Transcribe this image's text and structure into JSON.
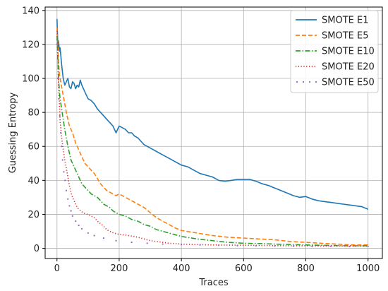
{
  "chart_data": {
    "type": "line",
    "title": "",
    "xlabel": "Traces",
    "ylabel": "Guessing Entropy",
    "xlim": [
      -38,
      1046
    ],
    "ylim": [
      -6,
      142
    ],
    "xticks": [
      0,
      200,
      400,
      600,
      800,
      1000
    ],
    "yticks": [
      0,
      20,
      40,
      60,
      80,
      100,
      120,
      140
    ],
    "grid": true,
    "legend_position": "top-right",
    "series": [
      {
        "name": "SMOTE E1",
        "color": "#1f77b4",
        "style": "solid",
        "x": [
          0,
          3,
          5,
          8,
          10,
          15,
          20,
          25,
          30,
          35,
          40,
          45,
          50,
          55,
          60,
          65,
          70,
          75,
          80,
          85,
          90,
          95,
          100,
          110,
          120,
          130,
          140,
          150,
          160,
          170,
          180,
          190,
          200,
          210,
          220,
          230,
          240,
          250,
          260,
          270,
          280,
          290,
          300,
          320,
          340,
          360,
          380,
          400,
          420,
          440,
          460,
          480,
          500,
          520,
          540,
          560,
          580,
          600,
          620,
          640,
          660,
          680,
          700,
          720,
          740,
          760,
          780,
          800,
          820,
          840,
          860,
          880,
          900,
          920,
          940,
          960,
          980,
          1000
        ],
        "y": [
          135,
          118,
          122,
          116,
          118,
          108,
          100,
          96,
          98,
          100,
          95,
          94,
          98,
          97,
          94,
          96,
          95,
          99,
          96,
          94,
          92,
          90,
          88,
          87,
          85,
          82,
          80,
          78,
          76,
          74,
          72,
          68,
          72,
          71,
          70,
          68,
          68,
          66,
          65,
          63,
          61,
          60,
          59,
          57,
          55,
          53,
          51,
          49,
          48,
          46,
          44,
          43,
          42,
          40,
          39.5,
          40,
          40.5,
          40.5,
          40.5,
          39.5,
          38,
          37,
          35.5,
          34,
          32.5,
          31,
          30,
          30.5,
          29,
          28,
          27.5,
          27,
          26.5,
          26,
          25.5,
          25,
          24.5,
          23
        ]
      },
      {
        "name": "SMOTE E5",
        "color": "#ff7f0e",
        "style": "dashed",
        "x": [
          0,
          3,
          5,
          8,
          10,
          15,
          20,
          25,
          30,
          35,
          40,
          45,
          50,
          55,
          60,
          65,
          70,
          75,
          80,
          90,
          100,
          110,
          120,
          130,
          140,
          150,
          160,
          170,
          180,
          190,
          200,
          220,
          240,
          260,
          280,
          300,
          320,
          340,
          360,
          380,
          400,
          450,
          500,
          550,
          600,
          650,
          700,
          750,
          800,
          850,
          900,
          950,
          1000
        ],
        "y": [
          130,
          118,
          110,
          102,
          100,
          95,
          90,
          85,
          80,
          76,
          72,
          70,
          68,
          65,
          62,
          60,
          58,
          56,
          54,
          50,
          48,
          46,
          44,
          41,
          38,
          36,
          34,
          33,
          32,
          31,
          32,
          30,
          28,
          26,
          24,
          21,
          18,
          16,
          14,
          12,
          10.5,
          9,
          7.5,
          6.5,
          6,
          5.5,
          5,
          4,
          3.5,
          3,
          2.5,
          2,
          2
        ]
      },
      {
        "name": "SMOTE E10",
        "color": "#2ca02c",
        "style": "dashdot",
        "x": [
          0,
          3,
          5,
          8,
          10,
          15,
          20,
          25,
          30,
          35,
          40,
          45,
          50,
          55,
          60,
          65,
          70,
          75,
          80,
          90,
          100,
          110,
          120,
          130,
          140,
          150,
          160,
          170,
          180,
          190,
          200,
          220,
          240,
          260,
          280,
          300,
          320,
          340,
          360,
          380,
          400,
          450,
          500,
          550,
          600,
          650,
          700,
          750,
          800,
          850,
          900,
          950,
          1000
        ],
        "y": [
          125,
          110,
          100,
          92,
          88,
          82,
          76,
          70,
          65,
          60,
          56,
          52,
          50,
          48,
          46,
          44,
          42,
          40,
          38,
          36,
          34,
          32,
          31,
          30,
          28,
          26,
          25,
          24,
          22,
          21,
          20,
          19,
          17,
          16,
          14,
          13,
          11,
          10,
          9,
          8,
          7,
          5.5,
          4.5,
          3.5,
          3,
          2.8,
          2.5,
          2.2,
          2,
          1.8,
          1.6,
          1.5,
          1.5
        ]
      },
      {
        "name": "SMOTE E20",
        "color": "#d62728",
        "style": "dotted",
        "x": [
          0,
          3,
          5,
          8,
          10,
          15,
          20,
          25,
          30,
          35,
          40,
          45,
          50,
          55,
          60,
          65,
          70,
          80,
          90,
          100,
          110,
          120,
          130,
          140,
          150,
          160,
          170,
          180,
          190,
          200,
          220,
          240,
          260,
          280,
          300,
          320,
          340,
          360,
          380,
          400,
          450,
          500,
          550,
          600,
          650,
          700,
          750,
          800,
          850,
          900,
          950,
          1000
        ],
        "y": [
          128,
          110,
          95,
          85,
          75,
          65,
          58,
          52,
          47,
          42,
          37,
          33,
          30,
          28,
          26,
          24,
          23,
          21.5,
          20.5,
          20,
          19,
          18,
          16,
          14.5,
          13,
          11,
          10,
          9.2,
          8.6,
          8.2,
          7.8,
          7.2,
          6.5,
          5.5,
          4.5,
          4,
          3.5,
          3,
          2.8,
          2.5,
          2.2,
          2,
          1.9,
          1.8,
          1.7,
          1.6,
          1.5,
          1.5,
          1.4,
          1.4,
          1.3,
          1.3
        ]
      },
      {
        "name": "SMOTE E50",
        "color": "#9467bd",
        "style": "sparse-dots",
        "x": [
          0,
          3,
          6,
          9,
          12,
          15,
          18,
          22,
          26,
          30,
          35,
          40,
          45,
          50,
          60,
          70,
          80,
          100,
          120,
          150,
          190,
          240,
          290,
          340,
          400,
          460,
          520,
          580,
          640,
          700,
          760,
          820,
          880,
          940,
          1000
        ],
        "y": [
          120,
          100,
          88,
          78,
          68,
          60,
          52,
          45,
          40,
          34,
          29,
          25,
          22,
          19,
          16,
          13.5,
          11.5,
          9,
          7.5,
          6,
          4.5,
          3.5,
          3,
          2.5,
          2.2,
          2,
          1.8,
          1.6,
          1.5,
          1.4,
          1.3,
          1.2,
          1.2,
          1.1,
          1.1
        ]
      }
    ]
  }
}
